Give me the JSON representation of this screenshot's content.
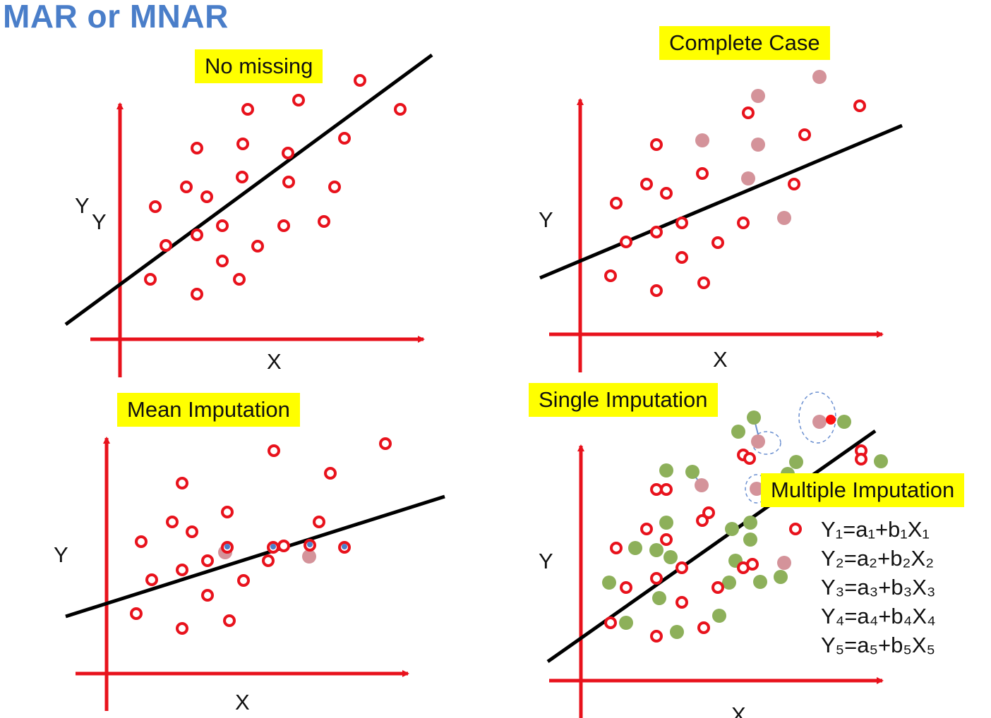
{
  "title": "MAR or MNAR",
  "colors": {
    "observed": "#e8121c",
    "missing": "#d4939a",
    "imputed_draw": "#8db05a",
    "regression_line": "#000000",
    "axes": "#e8121c",
    "label_bg": "#ffff00",
    "title": "#4a7ec9"
  },
  "panels": [
    {
      "id": "no-missing",
      "label": "No missing",
      "x_label": "X",
      "y_label": "Y",
      "y_label_extra": "Y"
    },
    {
      "id": "complete-case",
      "label": "Complete Case",
      "x_label": "X",
      "y_label": "Y"
    },
    {
      "id": "mean-imputation",
      "label": "Mean Imputation",
      "x_label": "X",
      "y_label": "Y"
    },
    {
      "id": "single-imputation",
      "label": "Single Imputation",
      "x_label": "X",
      "y_label": "Y"
    }
  ],
  "multiple_imputation": {
    "label": "Multiple Imputation",
    "formulas": [
      "Y₁=a₁+b₁X₁",
      "Y₂=a₂+b₂X₂",
      "Y₃=a₃+b₃X₃",
      "Y₄=a₄+b₄X₄",
      "Y₅=a₅+b₅X₅"
    ]
  }
}
